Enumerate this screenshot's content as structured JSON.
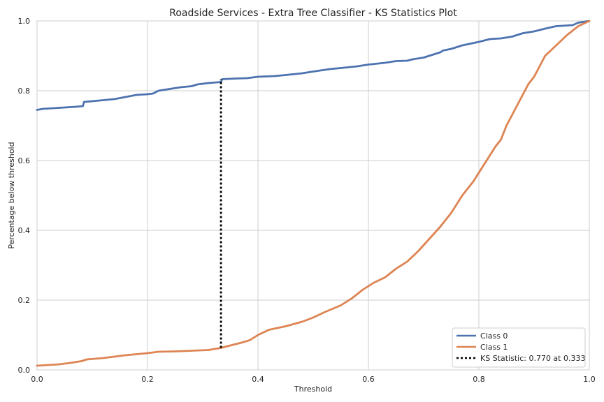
{
  "chart_data": {
    "type": "line",
    "title": "Roadside Services - Extra Tree Classifier - KS Statistics Plot",
    "xlabel": "Threshold",
    "ylabel": "Percentage below threshold",
    "xlim": [
      0,
      1
    ],
    "ylim": [
      0,
      1
    ],
    "xticks": [
      "0.0",
      "0.2",
      "0.4",
      "0.6",
      "0.8",
      "1.0"
    ],
    "yticks": [
      "0.0",
      "0.2",
      "0.4",
      "0.6",
      "0.8",
      "1.0"
    ],
    "grid": true,
    "legend_position": "bottom-right",
    "series": [
      {
        "name": "Class 0",
        "color": "#4c72b0",
        "points": [
          [
            0.0,
            0.745
          ],
          [
            0.01,
            0.748
          ],
          [
            0.03,
            0.75
          ],
          [
            0.05,
            0.752
          ],
          [
            0.07,
            0.754
          ],
          [
            0.083,
            0.756
          ],
          [
            0.085,
            0.768
          ],
          [
            0.1,
            0.77
          ],
          [
            0.12,
            0.773
          ],
          [
            0.14,
            0.776
          ],
          [
            0.16,
            0.782
          ],
          [
            0.18,
            0.788
          ],
          [
            0.2,
            0.79
          ],
          [
            0.21,
            0.792
          ],
          [
            0.22,
            0.8
          ],
          [
            0.24,
            0.805
          ],
          [
            0.26,
            0.81
          ],
          [
            0.28,
            0.813
          ],
          [
            0.29,
            0.818
          ],
          [
            0.31,
            0.822
          ],
          [
            0.333,
            0.825
          ],
          [
            0.335,
            0.833
          ],
          [
            0.36,
            0.835
          ],
          [
            0.38,
            0.836
          ],
          [
            0.4,
            0.84
          ],
          [
            0.43,
            0.842
          ],
          [
            0.45,
            0.845
          ],
          [
            0.48,
            0.85
          ],
          [
            0.5,
            0.855
          ],
          [
            0.53,
            0.862
          ],
          [
            0.55,
            0.865
          ],
          [
            0.58,
            0.87
          ],
          [
            0.6,
            0.875
          ],
          [
            0.63,
            0.88
          ],
          [
            0.65,
            0.885
          ],
          [
            0.67,
            0.886
          ],
          [
            0.68,
            0.89
          ],
          [
            0.7,
            0.895
          ],
          [
            0.72,
            0.905
          ],
          [
            0.73,
            0.91
          ],
          [
            0.735,
            0.915
          ],
          [
            0.75,
            0.92
          ],
          [
            0.77,
            0.93
          ],
          [
            0.8,
            0.94
          ],
          [
            0.82,
            0.948
          ],
          [
            0.84,
            0.95
          ],
          [
            0.86,
            0.955
          ],
          [
            0.88,
            0.965
          ],
          [
            0.9,
            0.97
          ],
          [
            0.92,
            0.978
          ],
          [
            0.94,
            0.985
          ],
          [
            0.97,
            0.988
          ],
          [
            0.98,
            0.995
          ],
          [
            1.0,
            1.0
          ]
        ]
      },
      {
        "name": "Class 1",
        "color": "#dd8452",
        "points": [
          [
            0.0,
            0.012
          ],
          [
            0.02,
            0.014
          ],
          [
            0.04,
            0.016
          ],
          [
            0.06,
            0.02
          ],
          [
            0.08,
            0.025
          ],
          [
            0.09,
            0.03
          ],
          [
            0.12,
            0.034
          ],
          [
            0.14,
            0.038
          ],
          [
            0.16,
            0.042
          ],
          [
            0.18,
            0.045
          ],
          [
            0.2,
            0.048
          ],
          [
            0.22,
            0.052
          ],
          [
            0.25,
            0.053
          ],
          [
            0.28,
            0.055
          ],
          [
            0.31,
            0.057
          ],
          [
            0.333,
            0.063
          ],
          [
            0.35,
            0.07
          ],
          [
            0.37,
            0.078
          ],
          [
            0.385,
            0.085
          ],
          [
            0.4,
            0.1
          ],
          [
            0.42,
            0.115
          ],
          [
            0.45,
            0.125
          ],
          [
            0.48,
            0.138
          ],
          [
            0.5,
            0.15
          ],
          [
            0.52,
            0.165
          ],
          [
            0.55,
            0.185
          ],
          [
            0.57,
            0.205
          ],
          [
            0.59,
            0.23
          ],
          [
            0.61,
            0.25
          ],
          [
            0.63,
            0.265
          ],
          [
            0.65,
            0.29
          ],
          [
            0.67,
            0.31
          ],
          [
            0.69,
            0.34
          ],
          [
            0.71,
            0.375
          ],
          [
            0.73,
            0.41
          ],
          [
            0.75,
            0.45
          ],
          [
            0.77,
            0.5
          ],
          [
            0.79,
            0.54
          ],
          [
            0.81,
            0.59
          ],
          [
            0.83,
            0.64
          ],
          [
            0.84,
            0.66
          ],
          [
            0.85,
            0.7
          ],
          [
            0.87,
            0.76
          ],
          [
            0.89,
            0.82
          ],
          [
            0.9,
            0.84
          ],
          [
            0.91,
            0.87
          ],
          [
            0.92,
            0.9
          ],
          [
            0.94,
            0.93
          ],
          [
            0.96,
            0.96
          ],
          [
            0.98,
            0.985
          ],
          [
            1.0,
            1.0
          ]
        ]
      }
    ],
    "ks_line": {
      "name": "KS Statistic: 0.770 at 0.333",
      "color": "#000000",
      "x": 0.333,
      "y_low": 0.063,
      "y_high": 0.833
    }
  }
}
